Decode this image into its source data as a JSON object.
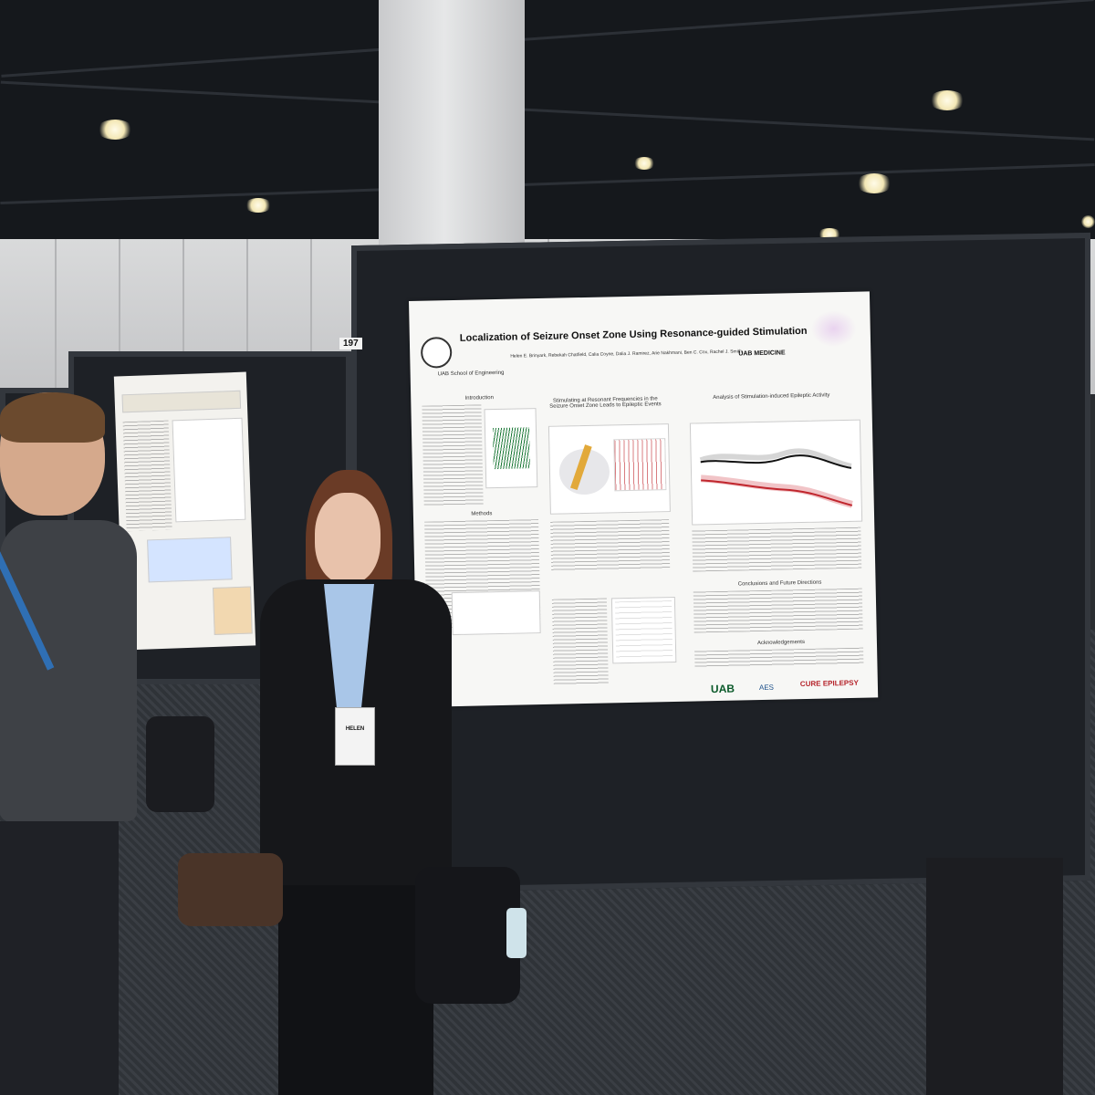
{
  "booth_number": "197",
  "poster": {
    "title": "Localization of Seizure Onset Zone Using Resonance-guided Stimulation",
    "authors": "Helen E. Brinyark, Rebekah Chatfield, Calia Coyne, Dalia J. Ramirez, Arie Nakhmani, Ben C. Cox, Rachel J. Smith",
    "school_label": "UAB School of Engineering",
    "medicine_label": "UAB MEDICINE",
    "section_intro": "Introduction",
    "section_methods": "Methods",
    "section_stim": "Stimulating at Resonant Frequencies in the Seizure Onset Zone Leads to Epileptic Events",
    "section_analysis": "Analysis of Stimulation-induced Epileptic Activity",
    "section_conclusions": "Conclusions and Future Directions",
    "section_ack": "Acknowledgements",
    "logo_uab": "UAB",
    "logo_aes": "AES",
    "logo_cure": "CURE EPILEPSY"
  },
  "badge": {
    "name": "HELEN"
  },
  "colors": {
    "board": "#1e2126",
    "poster_bg": "#f7f7f5",
    "soz_red": "#c0262d",
    "uab_green": "#0b5a2a"
  }
}
